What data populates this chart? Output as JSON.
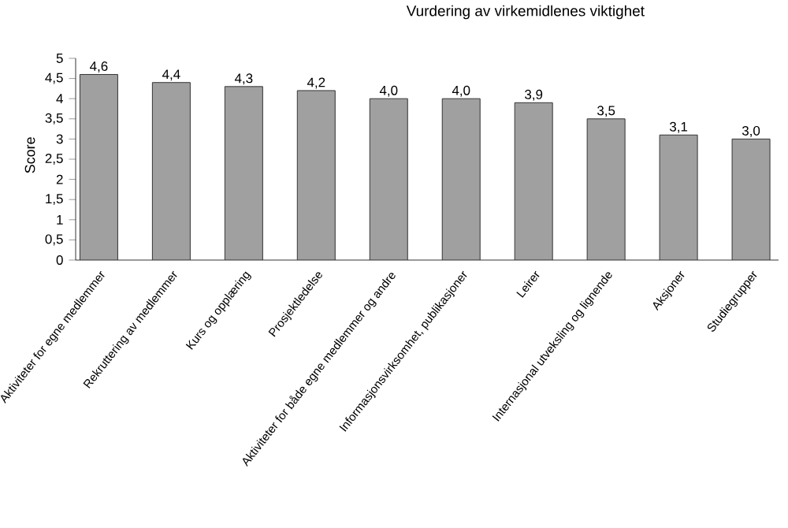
{
  "chart_data": {
    "type": "bar",
    "title": "Vurdering av virkemidlenes viktighet",
    "ylabel": "Score",
    "categories": [
      "Aktiviteter for egne medlemmer",
      "Rekruttering av medlemmer",
      "Kurs og opplæring",
      "Prosjektledelse",
      "Aktiviteter for både egne medlemmer og andre",
      "Informasjonsvirksomhet, publikasjoner",
      "Leirer",
      "Internasjonal utveksling og lignende",
      "Aksjoner",
      "Studiegrupper"
    ],
    "values": [
      4.6,
      4.4,
      4.3,
      4.2,
      4.0,
      4.0,
      3.9,
      3.5,
      3.1,
      3.0
    ],
    "value_labels": [
      "4,6",
      "4,4",
      "4,3",
      "4,2",
      "4,0",
      "4,0",
      "3,9",
      "3,5",
      "3,1",
      "3,0"
    ],
    "color": "#a0a0a0",
    "ylim": [
      0,
      5
    ],
    "yticks": [
      0,
      {
        "value": 0.5,
        "label": "0,5"
      },
      1,
      {
        "value": 1.5,
        "label": "1,5"
      },
      2,
      {
        "value": 2.5,
        "label": "2,5"
      },
      3,
      {
        "value": 3.5,
        "label": "3,5"
      },
      4,
      {
        "value": 4.5,
        "label": "4,5"
      },
      5
    ],
    "grid": false
  }
}
